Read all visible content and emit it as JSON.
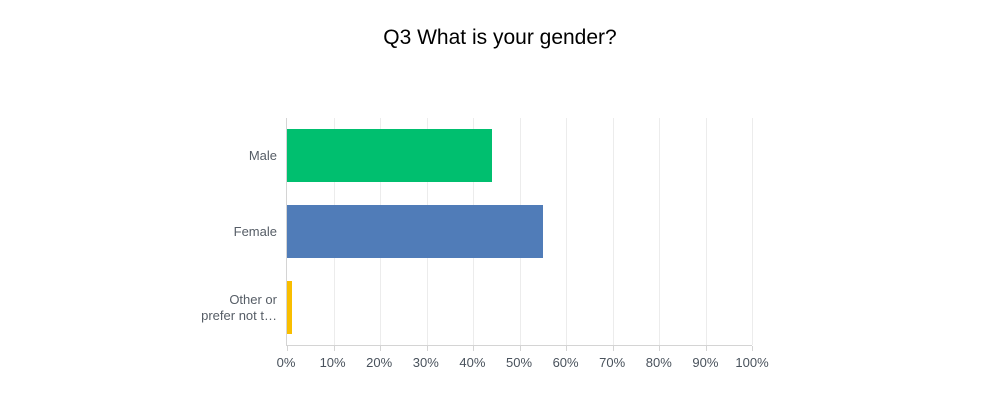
{
  "chart_data": {
    "type": "bar",
    "orientation": "horizontal",
    "title": "Q3 What is your gender?",
    "categories": [
      "Male",
      "Female",
      "Other or prefer not t…"
    ],
    "category_label_lines": [
      [
        "Male"
      ],
      [
        "Female"
      ],
      [
        "Other or",
        "prefer not t…"
      ]
    ],
    "values": [
      44,
      55,
      1
    ],
    "colors": [
      "#00BF6F",
      "#507CB8",
      "#F9BE00"
    ],
    "xlabel": "",
    "ylabel": "",
    "xlim": [
      0,
      100
    ],
    "x_tick_values": [
      0,
      10,
      20,
      30,
      40,
      50,
      60,
      70,
      80,
      90,
      100
    ],
    "x_ticks": [
      "0%",
      "10%",
      "20%",
      "30%",
      "40%",
      "50%",
      "60%",
      "70%",
      "80%",
      "90%",
      "100%"
    ],
    "grid": true,
    "legend": false
  },
  "style": {
    "grid_color": "#ececec",
    "axis_color": "#d4d4d4",
    "title_color": "#000000",
    "category_label_color": "#565d66",
    "tick_label_color": "#49525c",
    "background": "#ffffff"
  }
}
